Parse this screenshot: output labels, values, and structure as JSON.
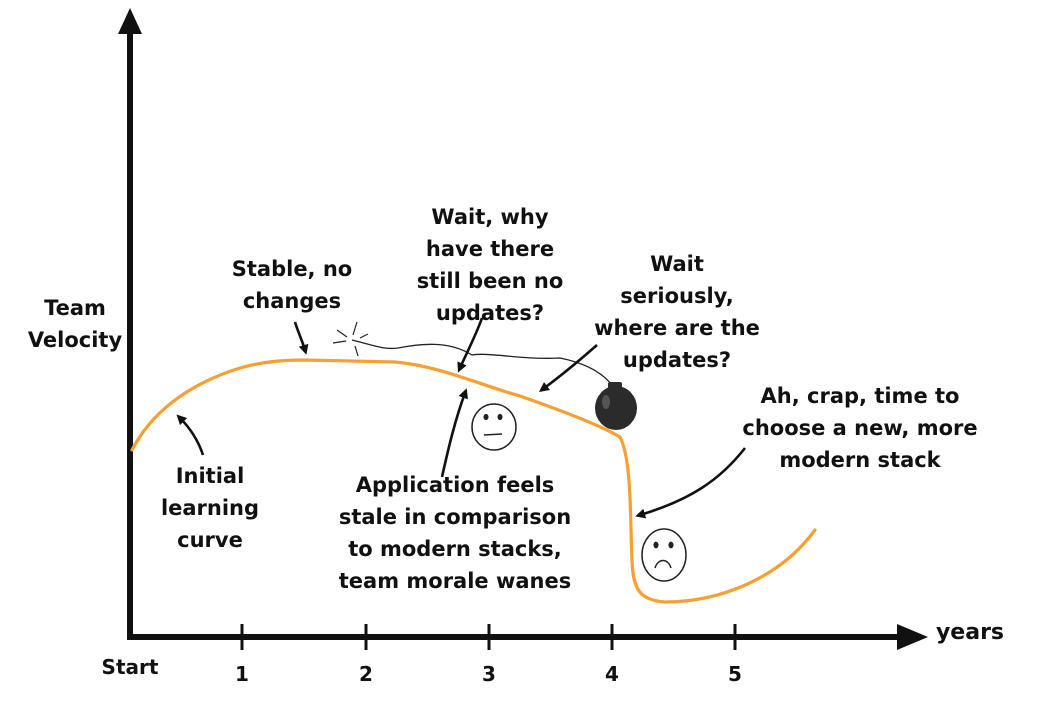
{
  "axes": {
    "y_label": "Team\nVelocity",
    "x_label": "years",
    "origin_label": "Start",
    "x_ticks": [
      "1",
      "2",
      "3",
      "4",
      "5"
    ]
  },
  "annotations": {
    "initial_learning_curve": "Initial\nlearning\ncurve",
    "stable_no_changes": "Stable, no\nchanges",
    "wait_why": "Wait, why\nhave there\nstill been no\nupdates?",
    "wait_seriously": "Wait\nseriously,\nwhere are the\nupdates?",
    "application_stale": "Application feels\nstale in comparison\nto modern stacks,\nteam morale wanes",
    "ah_crap": "Ah, crap, time to\nchoose a new, more\nmodern stack"
  },
  "colors": {
    "curve": "#f5a030",
    "ink": "#111111"
  },
  "icons": [
    "bomb-icon",
    "neutral-face-icon",
    "sad-face-icon"
  ]
}
